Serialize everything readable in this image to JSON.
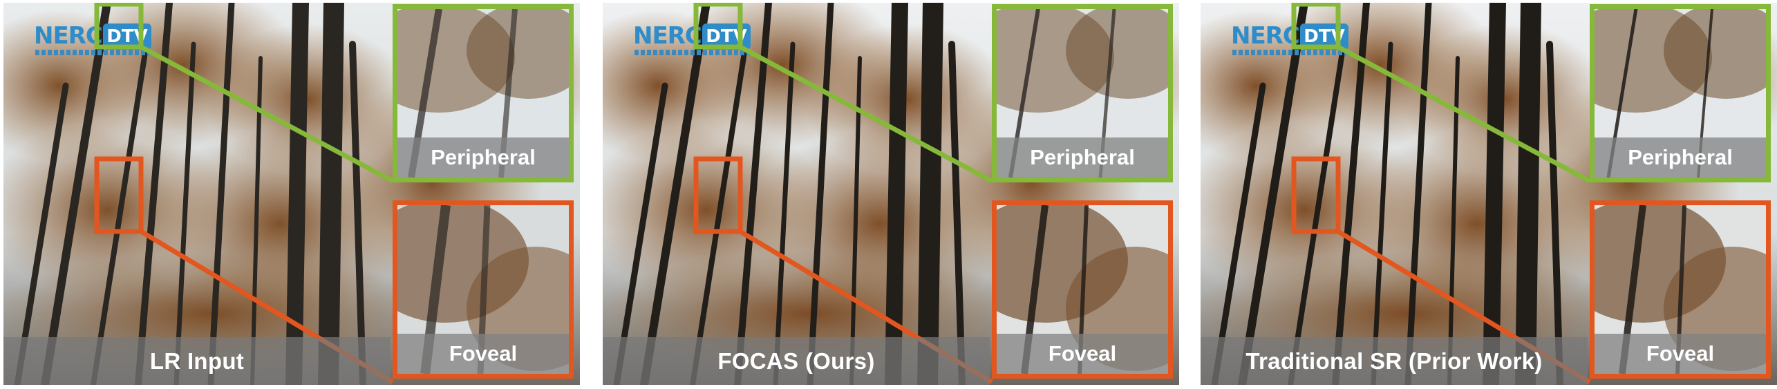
{
  "panels": [
    {
      "caption": "LR Input",
      "zoom_top_label": "Peripheral",
      "zoom_bottom_label": "Foveal",
      "logo_primary": "NERC",
      "logo_badge": "DTV"
    },
    {
      "caption": "FOCAS (Ours)",
      "zoom_top_label": "Peripheral",
      "zoom_bottom_label": "Foveal",
      "logo_primary": "NERC",
      "logo_badge": "DTV"
    },
    {
      "caption": "Traditional SR (Prior Work)",
      "zoom_top_label": "Peripheral",
      "zoom_bottom_label": "Foveal",
      "logo_primary": "NERC",
      "logo_badge": "DTV"
    }
  ],
  "colors": {
    "peripheral_frame": "#86b83a",
    "foveal_frame": "#e2571f",
    "logo_blue": "#2f8cc8",
    "sky": "#dfe4e6",
    "foliage": "#8a5a2e",
    "trunk": "#2a2622"
  }
}
